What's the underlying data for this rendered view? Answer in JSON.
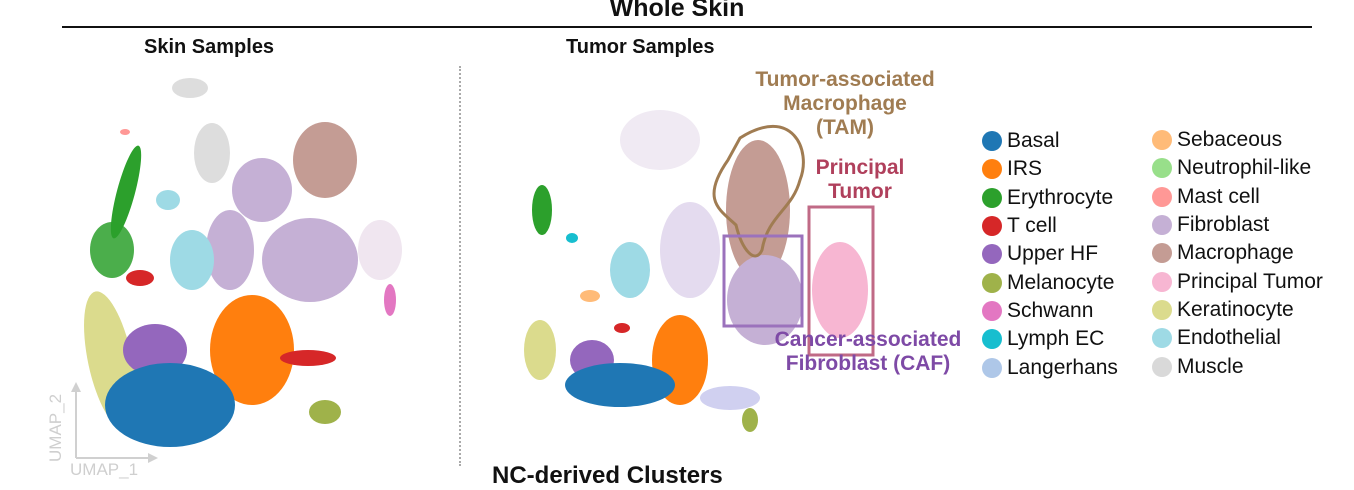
{
  "figure": {
    "title": "Whole Skin",
    "left_panel_title": "Skin Samples",
    "right_panel_title": "Tumor Samples",
    "axis_x_label": "UMAP_1",
    "axis_y_label": "UMAP_2",
    "bottom_cut_text": "NC-derived Clusters"
  },
  "annotations": {
    "tam": {
      "lines": [
        "Tumor-associated",
        "Macrophage",
        "(TAM)"
      ],
      "color": "#a07c52"
    },
    "principal": {
      "lines": [
        "Principal",
        "Tumor"
      ],
      "color": "#b0405c"
    },
    "caf": {
      "lines": [
        "Cancer-associated",
        "Fibroblast (CAF)"
      ],
      "color": "#7e4aa6"
    }
  },
  "legend": {
    "col1": [
      {
        "label": "Basal",
        "color": "#1f77b4"
      },
      {
        "label": "IRS",
        "color": "#ff7f0e"
      },
      {
        "label": "Erythrocyte",
        "color": "#2ca02c"
      },
      {
        "label": "T cell",
        "color": "#d62728"
      },
      {
        "label": "Upper HF",
        "color": "#9467bd"
      },
      {
        "label": "Melanocyte",
        "color": "#9fb24a"
      },
      {
        "label": "Schwann",
        "color": "#e377c2"
      },
      {
        "label": "Lymph EC",
        "color": "#17becf"
      },
      {
        "label": "Langerhans",
        "color": "#aec7e8"
      }
    ],
    "col2": [
      {
        "label": "Sebaceous",
        "color": "#ffbb78"
      },
      {
        "label": "Neutrophil-like",
        "color": "#98df8a"
      },
      {
        "label": "Mast cell",
        "color": "#ff9896"
      },
      {
        "label": "Fibroblast",
        "color": "#c5b0d5"
      },
      {
        "label": "Macrophage",
        "color": "#c49c94"
      },
      {
        "label": "Principal Tumor",
        "color": "#f7b6d2"
      },
      {
        "label": "Keratinocyte",
        "color": "#dbdb8d"
      },
      {
        "label": "Endothelial",
        "color": "#9edae5"
      },
      {
        "label": "Muscle",
        "color": "#d9d9d9"
      }
    ]
  }
}
